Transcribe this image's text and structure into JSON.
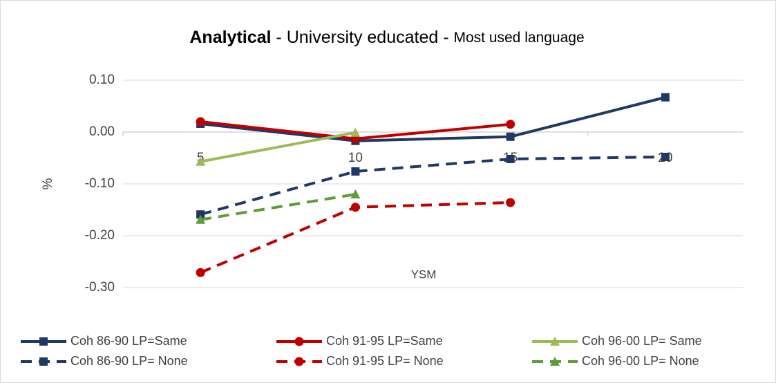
{
  "chart_data": {
    "type": "line",
    "title": [
      "Analytical",
      " - University educated - ",
      "Most used language"
    ],
    "x_label": "YSM",
    "y_label": "%",
    "categories": [
      "5",
      "10",
      "15",
      "20"
    ],
    "ylim": [
      -0.3,
      0.1
    ],
    "yticks": [
      {
        "value": 0.1,
        "label": "0.10"
      },
      {
        "value": 0,
        "label": "0.00"
      },
      {
        "value": -0.1,
        "label": "-0.10"
      },
      {
        "value": -0.2,
        "label": "-0.20"
      },
      {
        "value": -0.3,
        "label": "-0.30"
      }
    ],
    "grid": true,
    "legend": "bottom",
    "series": [
      {
        "name": "Coh 86-90 LP=Same",
        "color": "#1f3864",
        "dash": false,
        "marker": "square",
        "values": [
          0.016,
          -0.017,
          -0.009,
          0.067
        ]
      },
      {
        "name": "Coh 91-95 LP=Same",
        "color": "#c00000",
        "dash": false,
        "marker": "circle",
        "values": [
          0.02,
          -0.013,
          0.015,
          null
        ]
      },
      {
        "name": "Coh 96-00 LP= Same",
        "color": "#9bbb59",
        "dash": false,
        "marker": "triangle",
        "values": [
          -0.057,
          -0.001,
          null,
          null
        ]
      },
      {
        "name": "Coh 86-90 LP= None",
        "color": "#1f3864",
        "dash": true,
        "marker": "square",
        "values": [
          -0.159,
          -0.076,
          -0.052,
          -0.048
        ]
      },
      {
        "name": "Coh 91-95 LP= None",
        "color": "#c00000",
        "dash": true,
        "marker": "circle",
        "values": [
          -0.271,
          -0.145,
          -0.136,
          null
        ]
      },
      {
        "name": "Coh 96-00 LP= None",
        "color": "#5e9c3a",
        "dash": true,
        "marker": "triangle",
        "values": [
          -0.169,
          -0.12,
          null,
          null
        ]
      }
    ]
  }
}
